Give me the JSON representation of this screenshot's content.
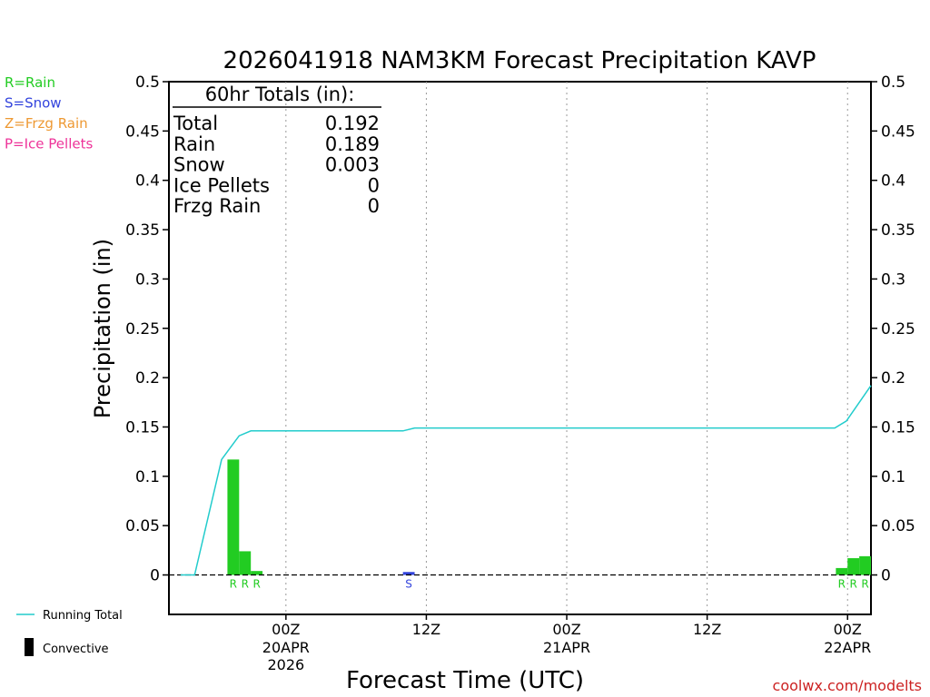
{
  "chart_data": {
    "type": "bar",
    "title": "2026041918 NAM3KM Forecast Precipitation KAVP",
    "xlabel": "Forecast Time (UTC)",
    "ylabel": "Precipitation (in)",
    "ylim": [
      -0.04,
      0.5
    ],
    "y_ticks": [
      0,
      0.05,
      0.1,
      0.15,
      0.2,
      0.25,
      0.3,
      0.35,
      0.4,
      0.45,
      0.5
    ],
    "y_tick_labels": [
      "0",
      "0.05",
      "0.1",
      "0.15",
      "0.2",
      "0.25",
      "0.3",
      "0.35",
      "0.4",
      "0.45",
      "0.5"
    ],
    "x_range_hours": [
      -4,
      56
    ],
    "x_ticks": [
      {
        "hour": 6,
        "label": "00Z",
        "sub1": "20APR",
        "sub2": "2026"
      },
      {
        "hour": 18,
        "label": "12Z",
        "sub1": "",
        "sub2": ""
      },
      {
        "hour": 30,
        "label": "00Z",
        "sub1": "21APR",
        "sub2": ""
      },
      {
        "hour": 42,
        "label": "12Z",
        "sub1": "",
        "sub2": ""
      },
      {
        "hour": 54,
        "label": "00Z",
        "sub1": "22APR",
        "sub2": ""
      }
    ],
    "legend_types": [
      {
        "text": "R=Rain",
        "color": "#22cc22"
      },
      {
        "text": "S=Snow",
        "color": "#3344dd"
      },
      {
        "text": "Z=Frzg Rain",
        "color": "#ee9933"
      },
      {
        "text": "P=Ice Pellets",
        "color": "#ee3399"
      }
    ],
    "legend_lines": {
      "running_total": "Running Total",
      "convective": "Convective",
      "running_total_color": "#22cccc",
      "convective_color": "#000000"
    },
    "totals": {
      "heading": "60hr Totals (in):",
      "rows": [
        {
          "label": "Total",
          "value": "0.192"
        },
        {
          "label": "Rain",
          "value": "0.189"
        },
        {
          "label": "Snow",
          "value": "0.003"
        },
        {
          "label": "Ice Pellets",
          "value": "0"
        },
        {
          "label": "Frzg Rain",
          "value": "0"
        }
      ]
    },
    "bars": [
      {
        "hour": 2,
        "value": 0.117,
        "ptype": "R"
      },
      {
        "hour": 3,
        "value": 0.024,
        "ptype": "R"
      },
      {
        "hour": 4,
        "value": 0.004,
        "ptype": "R"
      },
      {
        "hour": 17,
        "value": 0.003,
        "ptype": "S"
      },
      {
        "hour": 54,
        "value": 0.007,
        "ptype": "R"
      },
      {
        "hour": 55,
        "value": 0.017,
        "ptype": "R"
      },
      {
        "hour": 56,
        "value": 0.019,
        "ptype": "R"
      }
    ],
    "running_total": [
      {
        "hour": -3,
        "value": 0
      },
      {
        "hour": -1.8,
        "value": 0
      },
      {
        "hour": 0.5,
        "value": 0.117
      },
      {
        "hour": 2,
        "value": 0.141
      },
      {
        "hour": 3,
        "value": 0.146
      },
      {
        "hour": 16,
        "value": 0.146
      },
      {
        "hour": 17,
        "value": 0.149
      },
      {
        "hour": 52.9,
        "value": 0.149
      },
      {
        "hour": 53.9,
        "value": 0.156
      },
      {
        "hour": 56,
        "value": 0.192
      }
    ],
    "credit": "coolwx.com/modelts"
  }
}
